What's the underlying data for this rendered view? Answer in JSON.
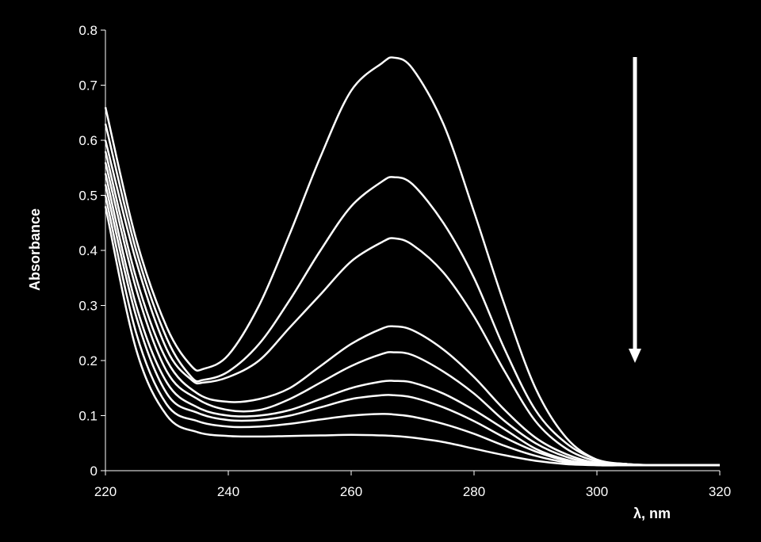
{
  "chart_data": {
    "type": "line",
    "title": "",
    "xlabel": "λ, nm",
    "ylabel": "Absorbance",
    "xlim": [
      220,
      320
    ],
    "ylim": [
      0,
      0.8
    ],
    "xticks": [
      "220",
      "240",
      "260",
      "280",
      "300",
      "320"
    ],
    "yticks": [
      "0",
      "0.1",
      "0.2",
      "0.3",
      "0.4",
      "0.5",
      "0.6",
      "0.7",
      "0.8"
    ],
    "grid": false,
    "legend": "none",
    "line_color": "#ffffff",
    "background_color": "#000000",
    "annotation": "arrow-down-icon",
    "annotation_meaning": "absorbance decreases across successive spectra",
    "series": [
      {
        "x": [
          220,
          225,
          230,
          234,
          236,
          240,
          245,
          250,
          255,
          260,
          265,
          267,
          270,
          275,
          280,
          285,
          290,
          295,
          300,
          305,
          310,
          320
        ],
        "y": [
          0.66,
          0.42,
          0.26,
          0.19,
          0.185,
          0.21,
          0.3,
          0.43,
          0.57,
          0.69,
          0.74,
          0.75,
          0.73,
          0.63,
          0.47,
          0.3,
          0.15,
          0.06,
          0.02,
          0.012,
          0.01,
          0.01
        ]
      },
      {
        "x": [
          220,
          225,
          230,
          234,
          236,
          240,
          245,
          250,
          255,
          260,
          265,
          267,
          270,
          275,
          280,
          285,
          290,
          295,
          300,
          305,
          310,
          320
        ],
        "y": [
          0.63,
          0.4,
          0.24,
          0.17,
          0.165,
          0.18,
          0.23,
          0.31,
          0.4,
          0.48,
          0.525,
          0.533,
          0.52,
          0.45,
          0.35,
          0.22,
          0.11,
          0.05,
          0.02,
          0.012,
          0.01,
          0.01
        ]
      },
      {
        "x": [
          220,
          225,
          230,
          234,
          236,
          240,
          245,
          250,
          255,
          260,
          265,
          267,
          270,
          275,
          280,
          285,
          290,
          295,
          300,
          305,
          310,
          320
        ],
        "y": [
          0.6,
          0.38,
          0.22,
          0.165,
          0.16,
          0.17,
          0.2,
          0.26,
          0.32,
          0.38,
          0.415,
          0.422,
          0.41,
          0.36,
          0.28,
          0.18,
          0.09,
          0.04,
          0.017,
          0.012,
          0.01,
          0.01
        ]
      },
      {
        "x": [
          220,
          225,
          230,
          235,
          240,
          245,
          250,
          255,
          260,
          265,
          267,
          270,
          275,
          280,
          285,
          290,
          295,
          300,
          305,
          310,
          320
        ],
        "y": [
          0.58,
          0.35,
          0.2,
          0.14,
          0.125,
          0.13,
          0.15,
          0.19,
          0.23,
          0.258,
          0.262,
          0.255,
          0.22,
          0.17,
          0.11,
          0.06,
          0.03,
          0.014,
          0.011,
          0.01,
          0.01
        ]
      },
      {
        "x": [
          220,
          225,
          230,
          235,
          240,
          245,
          250,
          255,
          260,
          265,
          267,
          270,
          275,
          280,
          285,
          290,
          295,
          300,
          305,
          310,
          320
        ],
        "y": [
          0.56,
          0.33,
          0.18,
          0.13,
          0.11,
          0.11,
          0.13,
          0.16,
          0.19,
          0.212,
          0.215,
          0.21,
          0.18,
          0.14,
          0.09,
          0.05,
          0.025,
          0.012,
          0.01,
          0.01,
          0.01
        ]
      },
      {
        "x": [
          220,
          225,
          230,
          235,
          240,
          245,
          250,
          255,
          260,
          265,
          267,
          270,
          275,
          280,
          285,
          290,
          295,
          300,
          305,
          310,
          320
        ],
        "y": [
          0.54,
          0.3,
          0.16,
          0.115,
          0.1,
          0.1,
          0.11,
          0.13,
          0.15,
          0.162,
          0.163,
          0.16,
          0.14,
          0.11,
          0.075,
          0.04,
          0.02,
          0.011,
          0.01,
          0.01,
          0.01
        ]
      },
      {
        "x": [
          220,
          225,
          230,
          235,
          240,
          245,
          250,
          255,
          260,
          265,
          267,
          270,
          275,
          280,
          285,
          290,
          295,
          300,
          305,
          310,
          320
        ],
        "y": [
          0.52,
          0.28,
          0.14,
          0.105,
          0.092,
          0.092,
          0.1,
          0.115,
          0.13,
          0.137,
          0.137,
          0.133,
          0.115,
          0.09,
          0.06,
          0.035,
          0.018,
          0.01,
          0.01,
          0.01,
          0.01
        ]
      },
      {
        "x": [
          220,
          225,
          230,
          235,
          240,
          245,
          250,
          255,
          260,
          265,
          267,
          270,
          275,
          280,
          285,
          290,
          295,
          300,
          305,
          310,
          320
        ],
        "y": [
          0.5,
          0.25,
          0.12,
          0.09,
          0.08,
          0.08,
          0.085,
          0.093,
          0.1,
          0.103,
          0.102,
          0.098,
          0.085,
          0.067,
          0.045,
          0.027,
          0.015,
          0.01,
          0.01,
          0.01,
          0.01
        ]
      },
      {
        "x": [
          220,
          225,
          230,
          235,
          240,
          245,
          250,
          255,
          260,
          265,
          267,
          270,
          275,
          280,
          285,
          290,
          295,
          300,
          305,
          310,
          320
        ],
        "y": [
          0.48,
          0.22,
          0.1,
          0.07,
          0.063,
          0.062,
          0.063,
          0.064,
          0.065,
          0.064,
          0.063,
          0.06,
          0.052,
          0.04,
          0.028,
          0.018,
          0.012,
          0.01,
          0.01,
          0.01,
          0.01
        ]
      }
    ]
  }
}
